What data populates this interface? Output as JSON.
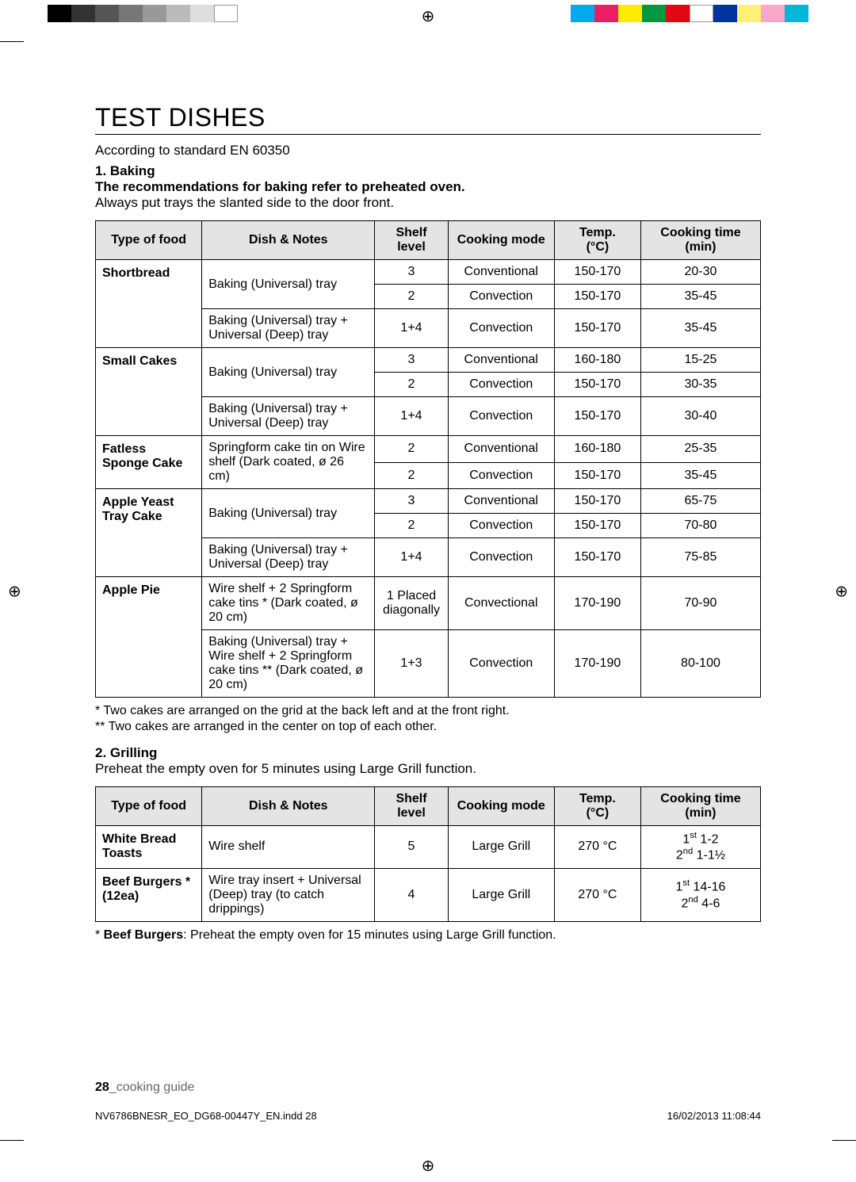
{
  "colorbars": {
    "left": [
      "#000000",
      "#333333",
      "#555555",
      "#777777",
      "#999999",
      "#bbbbbb",
      "#dddddd",
      "#ffffff"
    ],
    "right": [
      "#00aaee",
      "#e91e63",
      "#ffeb00",
      "#009940",
      "#e30613",
      "#ffffff",
      "#0033a0",
      "#fff176",
      "#f7a8c9",
      "#00b7d8"
    ]
  },
  "title": "TEST DISHES",
  "subtitle": "According to standard EN 60350",
  "section1": {
    "head": "1. Baking",
    "sub": "The recommendations for baking refer to preheated oven.",
    "note": "Always put trays the slanted side to the door front."
  },
  "tableHeaders": [
    "Type of food",
    "Dish & Notes",
    "Shelf level",
    "Cooking mode",
    "Temp. (°C)",
    "Cooking time (min)"
  ],
  "baking": [
    {
      "food": "Shortbread",
      "rows": [
        {
          "dish": "Baking (Universal) tray",
          "dishSpan": 2,
          "shelf": "3",
          "mode": "Conventional",
          "temp": "150-170",
          "time": "20-30"
        },
        {
          "shelf": "2",
          "mode": "Convection",
          "temp": "150-170",
          "time": "35-45"
        },
        {
          "dish": "Baking (Universal) tray + Universal (Deep) tray",
          "shelf": "1+4",
          "mode": "Convection",
          "temp": "150-170",
          "time": "35-45"
        }
      ]
    },
    {
      "food": "Small Cakes",
      "rows": [
        {
          "dish": "Baking (Universal) tray",
          "dishSpan": 2,
          "shelf": "3",
          "mode": "Conventional",
          "temp": "160-180",
          "time": "15-25"
        },
        {
          "shelf": "2",
          "mode": "Convection",
          "temp": "150-170",
          "time": "30-35"
        },
        {
          "dish": "Baking (Universal) tray + Universal (Deep) tray",
          "shelf": "1+4",
          "mode": "Convection",
          "temp": "150-170",
          "time": "30-40"
        }
      ]
    },
    {
      "food": "Fatless Sponge Cake",
      "rows": [
        {
          "dish": "Springform cake tin on Wire shelf (Dark coated, ø 26 cm)",
          "dishSpan": 2,
          "shelf": "2",
          "mode": "Conventional",
          "temp": "160-180",
          "time": "25-35"
        },
        {
          "shelf": "2",
          "mode": "Convection",
          "temp": "150-170",
          "time": "35-45"
        }
      ]
    },
    {
      "food": "Apple Yeast Tray Cake",
      "rows": [
        {
          "dish": "Baking (Universal) tray",
          "dishSpan": 2,
          "shelf": "3",
          "mode": "Conventional",
          "temp": "150-170",
          "time": "65-75"
        },
        {
          "shelf": "2",
          "mode": "Convection",
          "temp": "150-170",
          "time": "70-80"
        },
        {
          "dish": "Baking (Universal) tray + Universal (Deep) tray",
          "shelf": "1+4",
          "mode": "Convection",
          "temp": "150-170",
          "time": "75-85"
        }
      ]
    },
    {
      "food": "Apple Pie",
      "rows": [
        {
          "dish": "Wire shelf + 2 Springform cake tins *\n(Dark coated, ø 20 cm)",
          "shelf": "1 Placed diagonally",
          "mode": "Convectional",
          "temp": "170-190",
          "time": "70-90"
        },
        {
          "dish": "Baking (Universal) tray + Wire shelf + 2 Springform cake tins **\n(Dark coated, ø 20 cm)",
          "shelf": "1+3",
          "mode": "Convection",
          "temp": "170-190",
          "time": "80-100"
        }
      ]
    }
  ],
  "bakingNotes": [
    "* Two cakes are arranged on the grid at the back left and at the front right.",
    "** Two cakes are arranged in the center on top of each other."
  ],
  "section2": {
    "head": "2. Grilling",
    "note": "Preheat the empty oven for 5 minutes using Large Grill function."
  },
  "grilling": [
    {
      "food": "White Bread Toasts",
      "dish": "Wire shelf",
      "shelf": "5",
      "mode": "Large Grill",
      "temp": "270 °C",
      "time": "1<sup>st</sup> 1-2<br>2<sup>nd</sup> 1-1½"
    },
    {
      "food": "Beef Burgers * (12ea)",
      "dish": "Wire tray insert + Universal (Deep) tray (to catch drippings)",
      "shelf": "4",
      "mode": "Large Grill",
      "temp": "270 °C",
      "time": "1<sup>st</sup> 14-16<br>2<sup>nd</sup> 4-6"
    }
  ],
  "grillNote": {
    "prefix": "* ",
    "bold": "Beef Burgers",
    "rest": ": Preheat the empty oven for 15 minutes using Large Grill function."
  },
  "footer": {
    "page": "28",
    "label": "_cooking guide"
  },
  "meta": {
    "file": "NV6786BNESR_EO_DG68-00447Y_EN.indd   28",
    "date": "16/02/2013   11:08:44"
  }
}
